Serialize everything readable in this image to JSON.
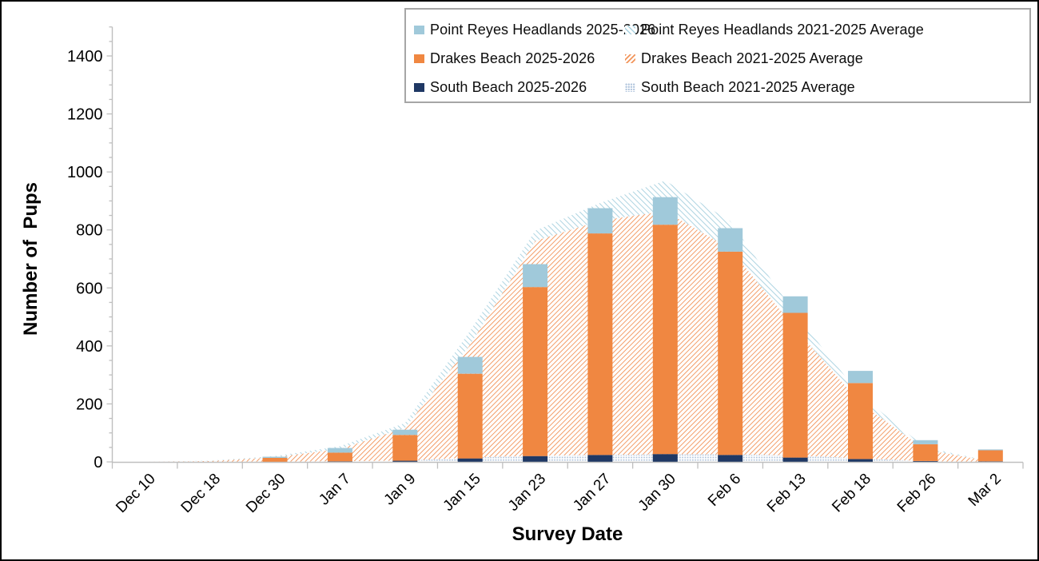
{
  "figure": {
    "description": "Elephant seal pup counts by survey date and site, current season bars vs 5-year average areas"
  },
  "colors": {
    "prh_current": "#a0c9da",
    "drakes_current": "#f08741",
    "south_current": "#1f3864",
    "prh_average_hatch": "#a9d2e0",
    "drakes_average_hatch": "#f2945a",
    "south_average_dots": "#b0c4dc",
    "axis_line": "#bfbfbf",
    "legend_border": "#a6a6a6",
    "text": "#000000"
  },
  "legend": {
    "items": [
      {
        "label": "Point Reyes Headlands 2025-2026",
        "swatch": "solid-lightblue"
      },
      {
        "label": "Point Reyes Headlands 2021-2025 Average",
        "swatch": "hatch-lightblue"
      },
      {
        "label": "Drakes Beach 2025-2026",
        "swatch": "solid-orange"
      },
      {
        "label": "Drakes Beach 2021-2025 Average",
        "swatch": "hatch-orange"
      },
      {
        "label": "South Beach 2025-2026",
        "swatch": "solid-navy"
      },
      {
        "label": "South Beach 2021-2025 Average",
        "swatch": "dots-blue"
      }
    ]
  },
  "chart_data": {
    "type": "combo: stacked bars (2025-2026) over stacked hatched areas (2021-2025 average)",
    "title": "",
    "xlabel": "Survey Date",
    "ylabel": "Number of  Pups",
    "ylim": [
      0,
      1500
    ],
    "yticks": [
      0,
      200,
      400,
      600,
      800,
      1000,
      1200,
      1400
    ],
    "ytick_minor_interval": 50,
    "grid": false,
    "legend_position": "top",
    "categories": [
      "Dec 10",
      "Dec 18",
      "Dec 30",
      "Jan 7",
      "Jan 9",
      "Jan 15",
      "Jan 23",
      "Jan 27",
      "Jan 30",
      "Feb 6",
      "Feb 13",
      "Feb 18",
      "Feb 26",
      "Mar 2"
    ],
    "bar_series": [
      {
        "name": "South Beach 2025-2026",
        "color": "#1f3864",
        "values": [
          0,
          0,
          0,
          2,
          4,
          12,
          20,
          24,
          27,
          24,
          15,
          10,
          3,
          2
        ]
      },
      {
        "name": "Drakes Beach 2025-2026",
        "color": "#f08741",
        "values": [
          0,
          0,
          14,
          30,
          89,
          292,
          583,
          764,
          791,
          701,
          499,
          262,
          58,
          38
        ]
      },
      {
        "name": "Point Reyes Headlands 2025-2026",
        "color": "#a0c9da",
        "values": [
          0,
          0,
          4,
          16,
          18,
          58,
          79,
          87,
          95,
          81,
          57,
          42,
          14,
          3
        ]
      }
    ],
    "bar_totals": [
      0,
      0,
      18,
      48,
      111,
      362,
      682,
      875,
      913,
      806,
      571,
      314,
      75,
      43
    ],
    "area_series": [
      {
        "name": "South Beach 2021-2025 Average",
        "pattern": "dots",
        "color": "#b0c4dc",
        "values": [
          0,
          0,
          1,
          2,
          4,
          15,
          21,
          24,
          26,
          26,
          22,
          12,
          2,
          0
        ]
      },
      {
        "name": "Drakes Beach 2021-2025 Average",
        "pattern": "diag-forward",
        "color": "#f2945a",
        "values": [
          0,
          3,
          15,
          43,
          113,
          389,
          741,
          808,
          839,
          709,
          438,
          191,
          40,
          2
        ]
      },
      {
        "name": "Point Reyes Headlands 2021-2025 Average",
        "pattern": "diag-back",
        "color": "#a9d2e0",
        "values": [
          0,
          1,
          4,
          9,
          17,
          48,
          35,
          61,
          105,
          95,
          50,
          27,
          8,
          0
        ]
      }
    ],
    "area_totals": [
      0,
      4,
      20,
      54,
      134,
      452,
      797,
      893,
      970,
      830,
      510,
      230,
      50,
      2
    ]
  }
}
